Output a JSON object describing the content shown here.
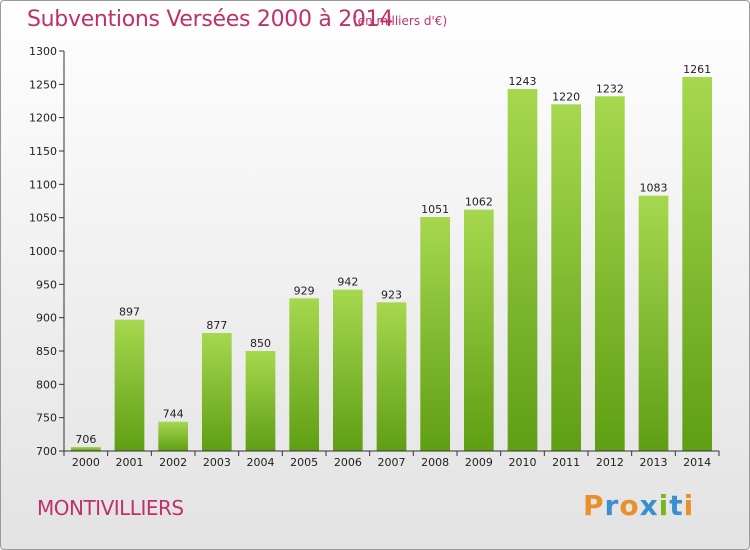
{
  "header": {
    "title": "Subventions Versées 2000 à 2014",
    "subtitle": "(en milliers d'€)"
  },
  "footer": {
    "place": "MONTIVILLIERS",
    "logo_text": "Proxiti"
  },
  "colors": {
    "bar_top": "#a6d84f",
    "bar_bottom": "#5f9e14",
    "title": "#c0306a"
  },
  "chart_data": {
    "type": "bar",
    "title": "Subventions Versées 2000 à 2014",
    "subtitle": "(en milliers d'€)",
    "xlabel": "",
    "ylabel": "",
    "categories": [
      "2000",
      "2001",
      "2002",
      "2003",
      "2004",
      "2005",
      "2006",
      "2007",
      "2008",
      "2009",
      "2010",
      "2011",
      "2012",
      "2013",
      "2014"
    ],
    "values": [
      706,
      897,
      744,
      877,
      850,
      929,
      942,
      923,
      1051,
      1062,
      1243,
      1220,
      1232,
      1083,
      1261
    ],
    "ylim": [
      700,
      1300
    ],
    "yticks": [
      700,
      750,
      800,
      850,
      900,
      950,
      1000,
      1050,
      1100,
      1150,
      1200,
      1250,
      1300
    ],
    "grid": false,
    "legend": "none",
    "data_labels": true
  }
}
